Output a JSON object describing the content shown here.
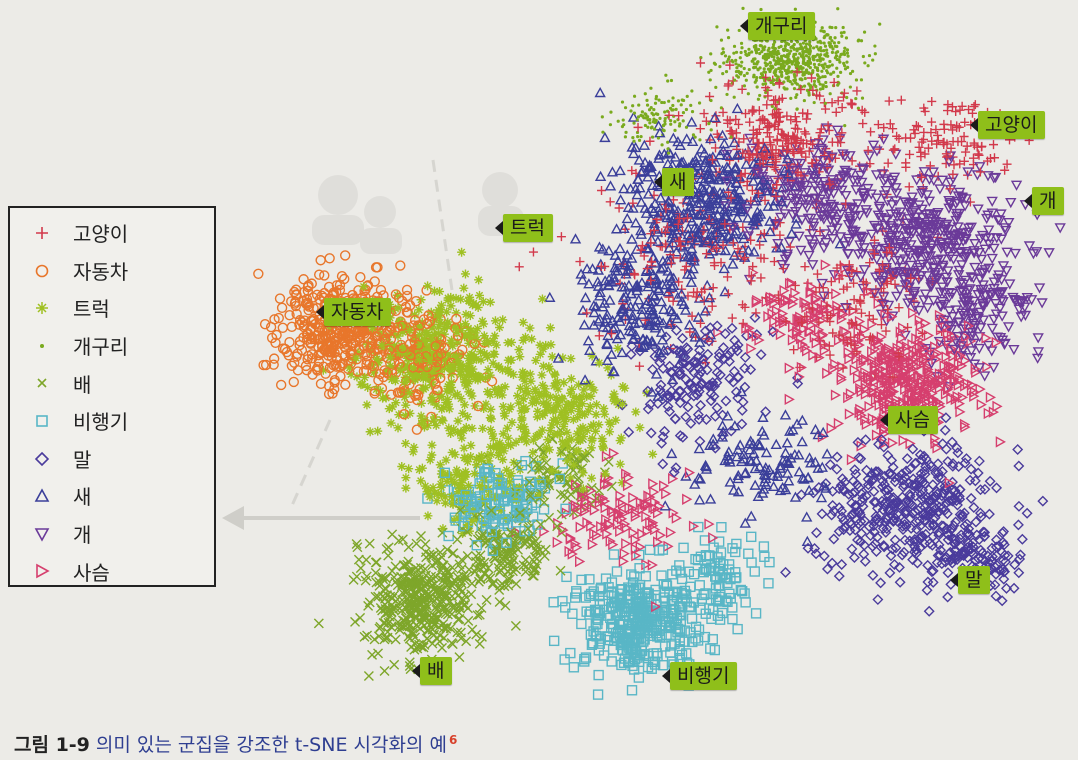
{
  "chart_data": {
    "type": "scatter",
    "method": "t-SNE",
    "series": [
      {
        "name": "고양이",
        "marker": "plus",
        "color": "#d2394b"
      },
      {
        "name": "자동차",
        "marker": "circle",
        "color": "#e8762b"
      },
      {
        "name": "트럭",
        "marker": "asterisk",
        "color": "#9fc022"
      },
      {
        "name": "개구리",
        "marker": "dot",
        "color": "#7aaa1e"
      },
      {
        "name": "배",
        "marker": "x",
        "color": "#7ea62a"
      },
      {
        "name": "비행기",
        "marker": "square",
        "color": "#59b6c6"
      },
      {
        "name": "말",
        "marker": "diamond",
        "color": "#4a3b9c"
      },
      {
        "name": "새",
        "marker": "triangle-up",
        "color": "#3b3f9a"
      },
      {
        "name": "개",
        "marker": "triangle-down",
        "color": "#6b3a99"
      },
      {
        "name": "사슴",
        "marker": "triangle-right",
        "color": "#d63f6e"
      }
    ],
    "cluster_labels": [
      "개구리",
      "고양이",
      "새",
      "개",
      "트럭",
      "자동차",
      "사슴",
      "말",
      "배",
      "비행기"
    ],
    "legend_position": "left",
    "grid": false,
    "axes_visible": false
  },
  "legend": {
    "items": [
      {
        "label": "고양이",
        "icon": "plus-icon"
      },
      {
        "label": "자동차",
        "icon": "circle-icon"
      },
      {
        "label": "트럭",
        "icon": "asterisk-icon"
      },
      {
        "label": "개구리",
        "icon": "dot-icon"
      },
      {
        "label": "배",
        "icon": "x-icon"
      },
      {
        "label": "비행기",
        "icon": "square-icon"
      },
      {
        "label": "말",
        "icon": "diamond-icon"
      },
      {
        "label": "새",
        "icon": "triangle-up-icon"
      },
      {
        "label": "개",
        "icon": "triangle-down-icon"
      },
      {
        "label": "사슴",
        "icon": "triangle-right-icon"
      }
    ]
  },
  "tags": {
    "frog": "개구리",
    "cat": "고양이",
    "bird": "새",
    "dog": "개",
    "truck": "트럭",
    "car": "자동차",
    "deer": "사슴",
    "horse": "말",
    "ship": "배",
    "plane": "비행기"
  },
  "caption": {
    "number": "그림 1-9",
    "text": "의미 있는 군집을 강조한 t-SNE 시각화의 예",
    "footnote": "6"
  }
}
